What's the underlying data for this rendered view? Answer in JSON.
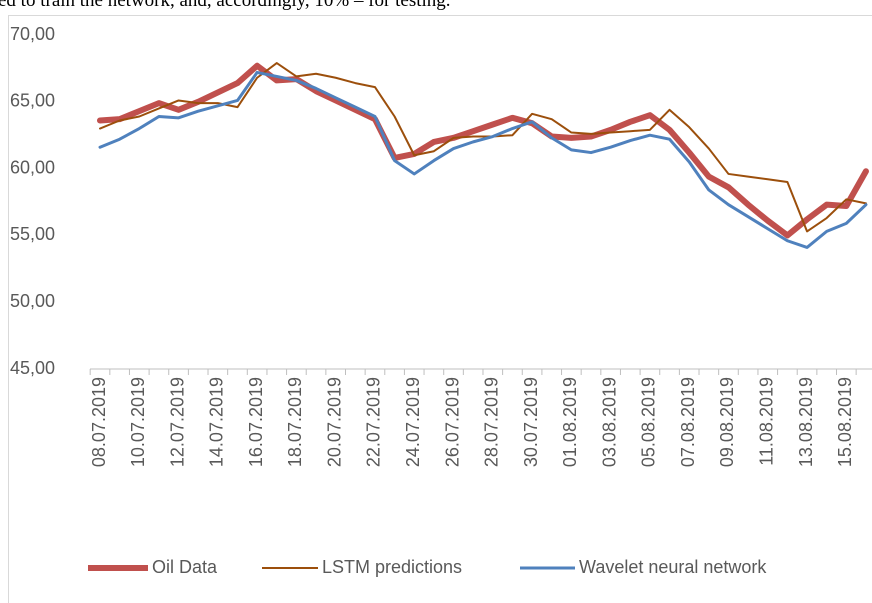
{
  "caption_text": "ed to train the network, and, accordingly, 10% – for testing.",
  "chart_data": {
    "type": "line",
    "categories": [
      "08.07.2019",
      null,
      "10.07.2019",
      null,
      "12.07.2019",
      null,
      "14.07.2019",
      null,
      "16.07.2019",
      null,
      "18.07.2019",
      null,
      "20.07.2019",
      null,
      "22.07.2019",
      null,
      "24.07.2019",
      null,
      "26.07.2019",
      null,
      "28.07.2019",
      null,
      "30.07.2019",
      null,
      "01.08.2019",
      null,
      "03.08.2019",
      null,
      "05.08.2019",
      null,
      "07.08.2019",
      null,
      "09.08.2019",
      null,
      "11.08.2019",
      null,
      "13.08.2019",
      null,
      "15.08.2019",
      null
    ],
    "series": [
      {
        "name": "Oil Data",
        "color": "#c0504d",
        "width": 6,
        "values": [
          63.6,
          63.7,
          64.3,
          64.9,
          64.4,
          65.0,
          65.7,
          66.4,
          67.7,
          66.6,
          66.7,
          65.8,
          65.1,
          64.4,
          63.7,
          60.8,
          61.1,
          62.0,
          62.3,
          62.8,
          63.3,
          63.8,
          63.4,
          62.4,
          62.3,
          62.4,
          62.9,
          63.5,
          64.0,
          62.9,
          61.2,
          59.4,
          58.6,
          57.3,
          56.1,
          55.0,
          56.2,
          57.3,
          57.2,
          59.8
        ]
      },
      {
        "name": "LSTM predictions",
        "color": "#9c4f0c",
        "width": 2,
        "values": [
          63.0,
          63.6,
          63.9,
          64.5,
          65.1,
          64.9,
          64.9,
          64.6,
          66.8,
          67.9,
          66.9,
          67.1,
          66.8,
          66.4,
          66.1,
          63.9,
          61.0,
          61.3,
          62.3,
          62.4,
          62.4,
          62.5,
          64.1,
          63.7,
          62.7,
          62.6,
          62.7,
          62.8,
          62.9,
          64.4,
          63.1,
          61.5,
          59.6,
          59.4,
          59.2,
          59.0,
          55.3,
          56.3,
          57.7,
          57.4
        ]
      },
      {
        "name": "Wavelet neural network",
        "color": "#4f81bd",
        "width": 3,
        "values": [
          61.6,
          62.2,
          63.0,
          63.9,
          63.8,
          64.3,
          64.7,
          65.1,
          67.2,
          66.9,
          66.6,
          66.0,
          65.3,
          64.6,
          63.9,
          60.6,
          59.6,
          60.6,
          61.5,
          62.0,
          62.4,
          63.0,
          63.5,
          62.3,
          61.4,
          61.2,
          61.6,
          62.1,
          62.5,
          62.2,
          60.5,
          58.4,
          57.3,
          56.4,
          55.5,
          54.6,
          54.1,
          55.3,
          55.9,
          57.3
        ]
      }
    ],
    "ylim": [
      45,
      70
    ],
    "yticks": [
      {
        "value": 45,
        "label": "45,00"
      },
      {
        "value": 50,
        "label": "50,00"
      },
      {
        "value": 55,
        "label": "55,00"
      },
      {
        "value": 60,
        "label": "60,00"
      },
      {
        "value": 65,
        "label": "65,00"
      },
      {
        "value": 70,
        "label": "70,00"
      }
    ],
    "grid": false,
    "legend": "bottom"
  }
}
